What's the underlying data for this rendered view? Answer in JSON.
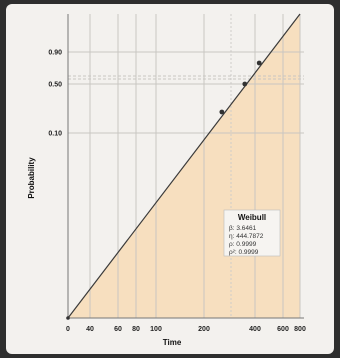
{
  "chart_data": {
    "type": "line",
    "xlabel": "Time",
    "ylabel": "Probability",
    "x_scale": "log",
    "y_scale": "weibull",
    "x_ticks": [
      {
        "value": 0,
        "label": "0"
      },
      {
        "value": 40,
        "label": "40"
      },
      {
        "value": 60,
        "label": "60"
      },
      {
        "value": 80,
        "label": "80"
      },
      {
        "value": 100,
        "label": "100"
      },
      {
        "value": 200,
        "label": "200"
      },
      {
        "value": 400,
        "label": "400"
      },
      {
        "value": 600,
        "label": "600"
      },
      {
        "value": 800,
        "label": "800"
      }
    ],
    "y_ticks": [
      {
        "value": 0.1,
        "label": "0.10"
      },
      {
        "value": 0.5,
        "label": "0.50"
      },
      {
        "value": 0.9,
        "label": "0.90"
      }
    ],
    "y_dashed": [
      0.6,
      0.7
    ],
    "fit_line": {
      "x": [
        0,
        800
      ],
      "y": [
        0.0,
        0.999
      ]
    },
    "points": [
      {
        "x": 270,
        "y": 0.28
      },
      {
        "x": 360,
        "y": 0.5
      },
      {
        "x": 430,
        "y": 0.75
      }
    ],
    "legend": {
      "title": "Weibull",
      "entries": [
        "β: 3.6461",
        "η: 444.7872",
        "ρ: 0.9999",
        "ρ²: 0.9999"
      ],
      "position": "bottom-right"
    },
    "fill_color": "#f7dfbf",
    "line_color": "#3a3a3a",
    "grid": true
  }
}
